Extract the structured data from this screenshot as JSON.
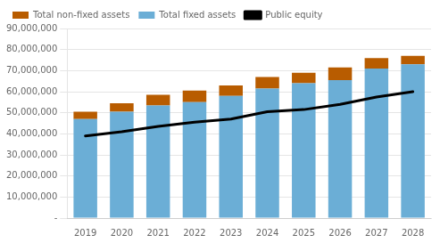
{
  "chart_data": {
    "type": "bar",
    "stacked": true,
    "categories": [
      "2019",
      "2020",
      "2021",
      "2022",
      "2023",
      "2024",
      "2025",
      "2026",
      "2027",
      "2028"
    ],
    "series": [
      {
        "name": "Total fixed assets",
        "type": "bar",
        "color": "#6baed6",
        "values": [
          47000000,
          50500000,
          53500000,
          55000000,
          58000000,
          61500000,
          64000000,
          65500000,
          71000000,
          73000000
        ]
      },
      {
        "name": "Total non-fixed assets",
        "type": "bar",
        "color": "#b85c00",
        "values": [
          3500000,
          4000000,
          5000000,
          5500000,
          5000000,
          5500000,
          5000000,
          6000000,
          5000000,
          4000000
        ]
      },
      {
        "name": "Public equity",
        "type": "line",
        "color": "#000000",
        "values": [
          39000000,
          41000000,
          43500000,
          45500000,
          47000000,
          50500000,
          51500000,
          54000000,
          57500000,
          60000000
        ]
      }
    ],
    "ylim": [
      0,
      90000000
    ],
    "yticks": [
      {
        "value": 0,
        "label": "-"
      },
      {
        "value": 10000000,
        "label": "10,000,000"
      },
      {
        "value": 20000000,
        "label": "20,000,000"
      },
      {
        "value": 30000000,
        "label": "30,000,000"
      },
      {
        "value": 40000000,
        "label": "40,000,000"
      },
      {
        "value": 50000000,
        "label": "50,000,000"
      },
      {
        "value": 60000000,
        "label": "60,000,000"
      },
      {
        "value": 70000000,
        "label": "70,000,000"
      },
      {
        "value": 80000000,
        "label": "80,000,000"
      },
      {
        "value": 90000000,
        "label": "90,000,000"
      }
    ],
    "grid": true,
    "legend": "upper left"
  }
}
